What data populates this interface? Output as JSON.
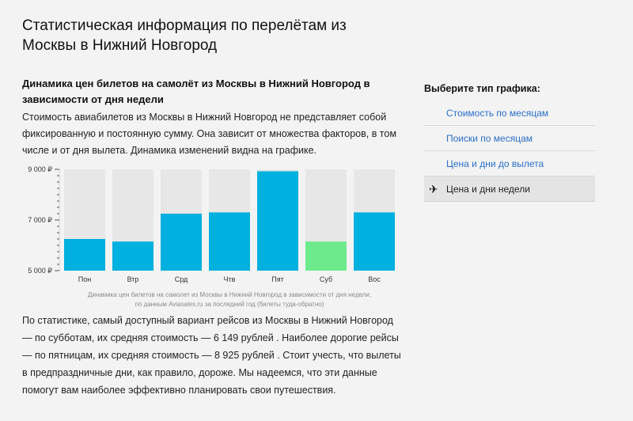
{
  "page": {
    "title": "Статистическая информация по перелётам из Москвы в Нижний Новгород"
  },
  "section": {
    "title": "Динамика цен билетов на самолёт из Москвы в Нижний Новгород в зависимости от дня недели",
    "intro": "Стоимость авиабилетов из Москвы в Нижний Новгород не представляет собой фиксированную и постоянную сумму. Она зависит от множества факторов, в том числе и от дня вылета. Динамика изменений видна на графике."
  },
  "chart_data": {
    "type": "bar",
    "categories": [
      "Пон",
      "Втр",
      "Срд",
      "Чтв",
      "Пят",
      "Суб",
      "Вос"
    ],
    "values": [
      6250,
      6149,
      7250,
      7300,
      8925,
      6149,
      7300
    ],
    "ylim": [
      5000,
      9000
    ],
    "ytick_labels": [
      "9 000 ₽",
      "7 000 ₽",
      "5 000 ₽"
    ],
    "ytick_values": [
      9000,
      7000,
      5000
    ],
    "highlight_category": "Суб",
    "colors": {
      "bar": "#00b0de",
      "highlight": "#6deb8c",
      "background_column": "#e7e7e7"
    },
    "caption_line1": "Динамика цен билетов на самолет из Москвы в Нижний Новгород в зависимости от дня недели,",
    "caption_line2": "по данным Aviasales.ru за последний год (билеты туда-обратно)"
  },
  "summary": "По статистике, самый доступный вариант рейсов из Москвы в Нижний Новгород — по субботам, их средняя стоимость — 6 149 рублей . Наиболее дорогие рейсы — по пятницам, их средняя стоимость — 8 925 рублей . Стоит учесть, что вылеты в предпраздничные дни, как правило, дороже. Мы надеемся, что эти данные помогут вам наиболее эффективно планировать свои путешествия.",
  "sidebar": {
    "title": "Выберите тип графика:",
    "items": [
      {
        "label": "Стоимость по месяцам"
      },
      {
        "label": "Поиски по месяцам"
      },
      {
        "label": "Цена и дни до вылета"
      },
      {
        "label": "Цена и дни недели",
        "icon": "plane-icon"
      }
    ]
  }
}
